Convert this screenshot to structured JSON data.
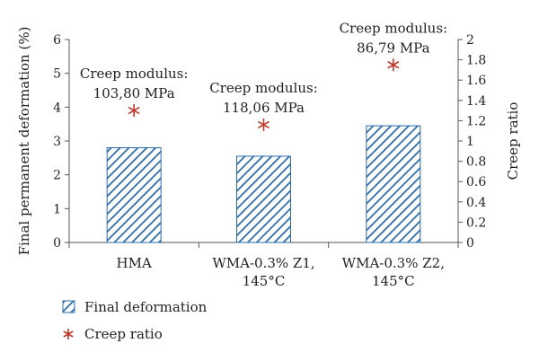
{
  "chart_data": {
    "type": "bar",
    "categories": [
      "HMA",
      "WMA-0.3% Z1, 145°C",
      "WMA-0.3% Z2, 145°C"
    ],
    "category_lines": [
      [
        "HMA"
      ],
      [
        "WMA-0.3% Z1,",
        "145°C"
      ],
      [
        "WMA-0.3% Z2,",
        "145°C"
      ]
    ],
    "series": [
      {
        "name": "Final deformation",
        "axis": "left",
        "kind": "bar",
        "values": [
          2.8,
          2.55,
          3.45
        ]
      },
      {
        "name": "Creep ratio",
        "axis": "right",
        "kind": "scatter",
        "values": [
          1.3,
          1.16,
          1.75
        ]
      }
    ],
    "annotations": [
      {
        "lines": [
          "Creep modulus:",
          "103,80 MPa"
        ]
      },
      {
        "lines": [
          "Creep modulus:",
          "118,06 MPa"
        ]
      },
      {
        "lines": [
          "Creep modulus:",
          "86,79 MPa"
        ]
      }
    ],
    "ylabel": "Final permanent deformation (%)",
    "y2label": "Creep ratio",
    "ylim": [
      0,
      6
    ],
    "y2lim": [
      0,
      2
    ],
    "yticks": [
      "0",
      "1",
      "2",
      "3",
      "4",
      "5",
      "6"
    ],
    "y2ticks": [
      "0",
      "0.2",
      "0.4",
      "0.6",
      "0.8",
      "1",
      "1.2",
      "1.4",
      "1.6",
      "1.8",
      "2"
    ],
    "grid": false,
    "legend_position": "bottom-left",
    "colors": {
      "bar": "#2a6aa8",
      "marker": "#c0392b",
      "axis": "#555555"
    }
  }
}
